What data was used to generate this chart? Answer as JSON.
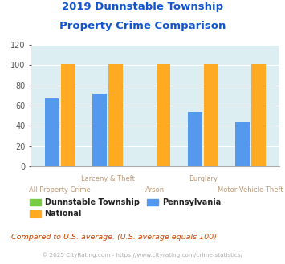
{
  "title_line1": "2019 Dunnstable Township",
  "title_line2": "Property Crime Comparison",
  "groups": [
    {
      "label_top": "",
      "label_bottom": "All Property Crime",
      "dunnstable": 0,
      "national": 101,
      "pennsylvania": 67
    },
    {
      "label_top": "Larceny & Theft",
      "label_bottom": "",
      "dunnstable": 0,
      "national": 101,
      "pennsylvania": 72
    },
    {
      "label_top": "",
      "label_bottom": "Arson",
      "dunnstable": 0,
      "national": 101,
      "pennsylvania": 0
    },
    {
      "label_top": "Burglary",
      "label_bottom": "",
      "dunnstable": 0,
      "national": 101,
      "pennsylvania": 54
    },
    {
      "label_top": "",
      "label_bottom": "Motor Vehicle Theft",
      "dunnstable": 0,
      "national": 101,
      "pennsylvania": 44
    }
  ],
  "color_dunnstable": "#77cc44",
  "color_national": "#ffaa22",
  "color_pennsylvania": "#5599ee",
  "ylim": [
    0,
    120
  ],
  "yticks": [
    0,
    20,
    40,
    60,
    80,
    100,
    120
  ],
  "background_color": "#ddeef2",
  "title_color": "#1155cc",
  "xlabel_color": "#bb9977",
  "legend_label_dunnstable": "Dunnstable Township",
  "legend_label_national": "National",
  "legend_label_pennsylvania": "Pennsylvania",
  "footnote1": "Compared to U.S. average. (U.S. average equals 100)",
  "footnote2": "© 2025 CityRating.com - https://www.cityrating.com/crime-statistics/",
  "footnote1_color": "#cc4400",
  "footnote2_color": "#aaaaaa"
}
